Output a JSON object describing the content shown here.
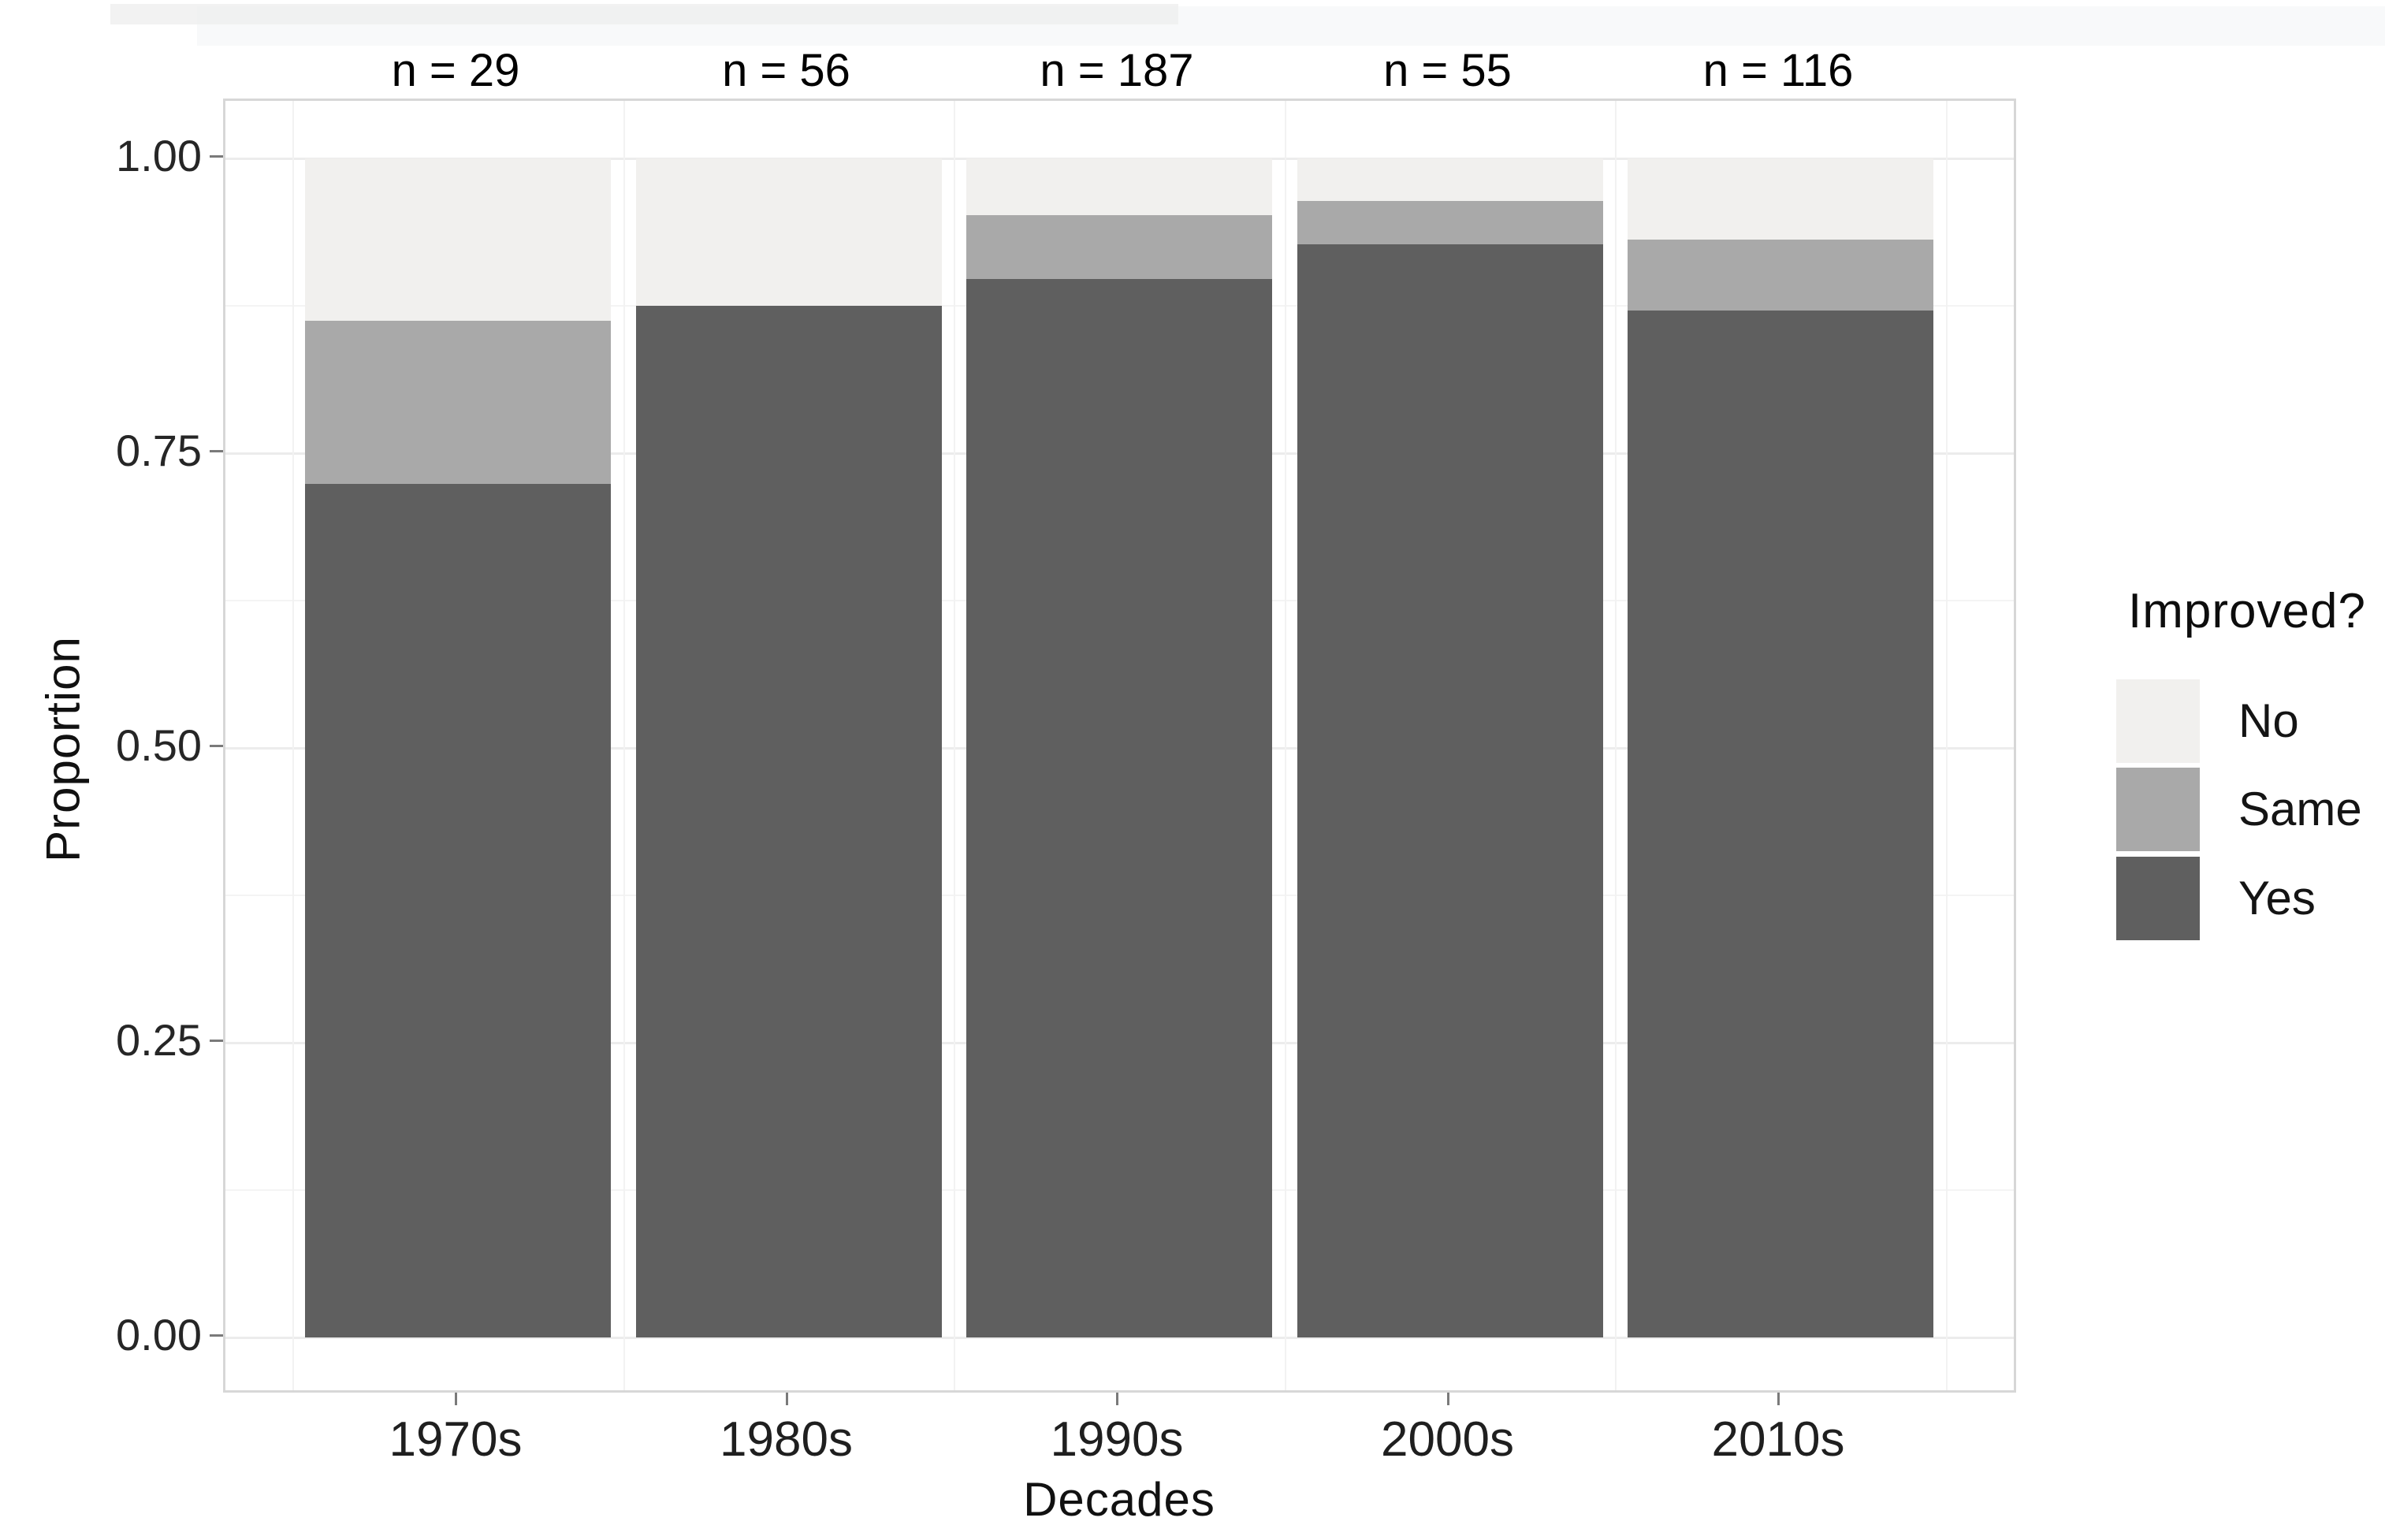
{
  "chart_data": {
    "type": "bar",
    "stacked": true,
    "normalized": true,
    "title": "",
    "xlabel": "Decades",
    "ylabel": "Proportion",
    "categories": [
      "1970s",
      "1980s",
      "1990s",
      "2000s",
      "2010s"
    ],
    "n_labels": [
      "n = 29",
      "n = 56",
      "n = 187",
      "n = 55",
      "n = 116"
    ],
    "series": [
      {
        "name": "Yes",
        "color": "#5f5f5f",
        "values": [
          0.724,
          0.875,
          0.898,
          0.927,
          0.871
        ]
      },
      {
        "name": "Same",
        "color": "#a9a9a9",
        "values": [
          0.138,
          0.0,
          0.054,
          0.037,
          0.06
        ]
      },
      {
        "name": "No",
        "color": "#f1f0ee",
        "values": [
          0.138,
          0.125,
          0.048,
          0.036,
          0.069
        ]
      }
    ],
    "legend": {
      "title": "Improved?",
      "position": "right",
      "entries": [
        {
          "label": "No",
          "color": "#f1f0ee"
        },
        {
          "label": "Same",
          "color": "#a9a9a9"
        },
        {
          "label": "Yes",
          "color": "#5f5f5f"
        }
      ]
    },
    "y_ticks": [
      {
        "label": "1.00",
        "value": 1.0
      },
      {
        "label": "0.75",
        "value": 0.75
      },
      {
        "label": "0.50",
        "value": 0.5
      },
      {
        "label": "0.25",
        "value": 0.25
      },
      {
        "label": "0.00",
        "value": 0.0
      }
    ],
    "ylim": [
      0,
      1
    ],
    "grid": "major+minor",
    "y_minor_ticks": [
      0.125,
      0.375,
      0.625,
      0.875
    ]
  }
}
